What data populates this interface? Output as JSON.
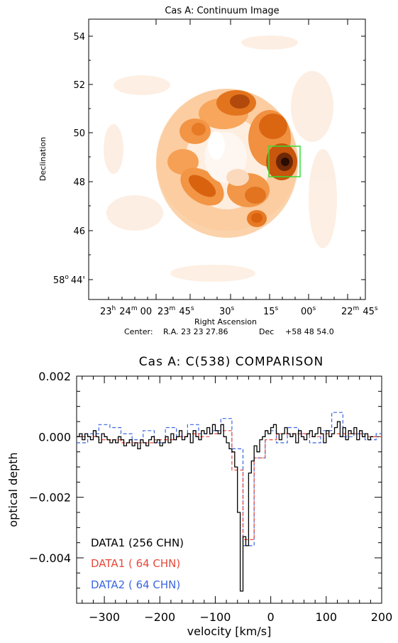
{
  "chart_data": [
    {
      "type": "heatmap",
      "title": "Cas A: Continuum Image",
      "xlabel": "Right Ascension",
      "ylabel": "Declination",
      "center_caption": {
        "label": "Center:",
        "ra_label": "R.A. 23 23 27.86",
        "dec_label": "Dec",
        "dec_value": "+58 48 54.0"
      },
      "x_ticks": [
        {
          "h": "23",
          "hs": "h",
          "m": "24",
          "ms": "m",
          "s": "00",
          "ss": "s"
        },
        {
          "h": "",
          "hs": "",
          "m": "23",
          "ms": "m",
          "s": "45",
          "ss": "s"
        },
        {
          "h": "",
          "hs": "",
          "m": "",
          "ms": "",
          "s": "30",
          "ss": "s"
        },
        {
          "h": "",
          "hs": "",
          "m": "",
          "ms": "",
          "s": "15",
          "ss": "s"
        },
        {
          "h": "",
          "hs": "",
          "m": "",
          "ms": "",
          "s": "00",
          "ss": "s"
        },
        {
          "h": "",
          "hs": "",
          "m": "22",
          "ms": "m",
          "s": "45",
          "ss": "s"
        }
      ],
      "y_ticks": [
        "54",
        "52",
        "50",
        "48",
        "46"
      ],
      "y_origin_tick": {
        "deg": "58",
        "deg_sym": "o",
        "min": "44'"
      },
      "colormap": [
        "#ffffff",
        "#fde7d3",
        "#f9bf86",
        "#f08a33",
        "#d96410",
        "#8e3a08",
        "#2a0d02"
      ],
      "box_color": "#33dd33"
    },
    {
      "type": "line",
      "title": "Cas A: C(538) COMPARISON",
      "xlabel": "velocity [km/s]",
      "ylabel": "optical depth",
      "xlim": [
        -350,
        200
      ],
      "ylim": [
        -0.0055,
        0.002
      ],
      "x_ticks": [
        -300,
        -200,
        -100,
        0,
        100,
        200
      ],
      "x_tick_labels": [
        "−300",
        "−200",
        "−100",
        "0",
        "100",
        "200"
      ],
      "y_ticks": [
        0.002,
        0.0,
        -0.002,
        -0.004
      ],
      "y_tick_labels": [
        "0.002",
        "0.000",
        "−0.002",
        "−0.004"
      ],
      "series": [
        {
          "name": "DATA1 (256 CHN)",
          "color": "#000000",
          "style": "solid-step",
          "x": [
            -350,
            -345,
            -340,
            -335,
            -330,
            -325,
            -320,
            -315,
            -310,
            -305,
            -300,
            -295,
            -290,
            -285,
            -280,
            -275,
            -270,
            -265,
            -260,
            -255,
            -250,
            -245,
            -240,
            -235,
            -230,
            -225,
            -220,
            -215,
            -210,
            -205,
            -200,
            -195,
            -190,
            -185,
            -180,
            -175,
            -170,
            -165,
            -160,
            -155,
            -150,
            -145,
            -140,
            -135,
            -130,
            -125,
            -120,
            -115,
            -110,
            -105,
            -100,
            -95,
            -90,
            -85,
            -80,
            -75,
            -70,
            -65,
            -60,
            -55,
            -50,
            -45,
            -40,
            -35,
            -30,
            -25,
            -20,
            -15,
            -10,
            -5,
            0,
            5,
            10,
            15,
            20,
            25,
            30,
            35,
            40,
            45,
            50,
            55,
            60,
            65,
            70,
            75,
            80,
            85,
            90,
            95,
            100,
            105,
            110,
            115,
            120,
            125,
            130,
            135,
            140,
            145,
            150,
            155,
            160,
            165,
            170,
            175,
            180
          ],
          "values": [
            0.0,
            0.0001,
            -0.0001,
            0.0001,
            0.0,
            -0.0001,
            0.0002,
            0.0,
            -0.0002,
            0.0001,
            0.0,
            -0.0001,
            -0.0002,
            -0.0001,
            -0.0002,
            0.0,
            -0.0001,
            -0.0003,
            -0.0002,
            -0.0001,
            -0.0003,
            -0.0002,
            -0.0004,
            -0.0001,
            -0.0002,
            -0.0003,
            -0.0001,
            0.0,
            -0.0002,
            -0.0001,
            -0.0003,
            -0.0002,
            0.0,
            -0.0002,
            0.0001,
            -0.0001,
            0.0,
            0.0002,
            -0.0001,
            0.0,
            0.0001,
            -0.0002,
            0.0002,
            0.0,
            -0.0001,
            0.0002,
            0.0001,
            0.0003,
            0.0001,
            0.0004,
            0.0002,
            0.0001,
            0.0004,
            0.0,
            -0.0002,
            -0.0004,
            -0.0005,
            -0.001,
            -0.0025,
            -0.0051,
            -0.0033,
            -0.0036,
            -0.0012,
            -0.0008,
            -0.0003,
            -0.0005,
            -0.0001,
            0.0,
            0.0002,
            0.0001,
            0.0003,
            0.0004,
            0.0001,
            -0.0001,
            0.0001,
            0.0003,
            0.0001,
            0.0,
            0.0001,
            -0.0002,
            0.0002,
            0.0,
            -0.0001,
            0.0001,
            0.0002,
            0.0,
            0.0001,
            0.0003,
            0.0001,
            -0.0002,
            0.0002,
            0.0,
            0.0001,
            0.0003,
            0.0005,
            0.0,
            0.0003,
            -0.0001,
            0.0002,
            0.0001,
            0.0003,
            -0.0001,
            0.0002,
            0.0,
            0.0001,
            -0.0001,
            0.0
          ]
        },
        {
          "name": "DATA1 ( 64 CHN)",
          "color": "#e8483a",
          "style": "dashed-step",
          "x": [
            -350,
            -330,
            -310,
            -290,
            -270,
            -250,
            -230,
            -210,
            -190,
            -170,
            -150,
            -130,
            -110,
            -90,
            -70,
            -50,
            -30,
            -10,
            10,
            30,
            50,
            70,
            90,
            110,
            130,
            150,
            170,
            190
          ],
          "values": [
            0.0,
            0.0,
            -0.0001,
            -0.0001,
            -0.0002,
            -0.0002,
            -0.0002,
            -0.0001,
            -0.0001,
            0.0,
            0.0001,
            0.0,
            0.0001,
            0.0002,
            -0.0011,
            -0.0034,
            -0.0007,
            -0.0001,
            0.0001,
            0.0001,
            0.0001,
            0.0,
            0.0001,
            0.0001,
            0.0001,
            0.0001,
            0.0,
            0.0
          ]
        },
        {
          "name": "DATA2 ( 64 CHN)",
          "color": "#3a66e0",
          "style": "dashed-step",
          "x": [
            -350,
            -330,
            -310,
            -290,
            -270,
            -250,
            -230,
            -210,
            -190,
            -170,
            -150,
            -130,
            -110,
            -90,
            -70,
            -50,
            -30,
            -10,
            10,
            30,
            50,
            70,
            90,
            110,
            130,
            150,
            170,
            190
          ],
          "values": [
            -0.0002,
            0.0001,
            0.0004,
            0.0003,
            0.0001,
            -0.0001,
            0.0002,
            -0.0002,
            0.0003,
            0.0,
            0.0004,
            0.0001,
            0.0002,
            0.0006,
            -0.0004,
            -0.0036,
            -0.0007,
            0.0002,
            -0.0002,
            0.0003,
            0.0001,
            -0.0002,
            0.0002,
            0.0008,
            0.0,
            0.0001,
            -0.0001,
            0.0001
          ]
        }
      ]
    }
  ]
}
